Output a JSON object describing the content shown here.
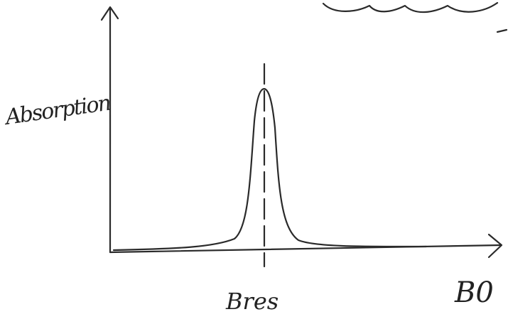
{
  "axes": {
    "y_label": "Absorption",
    "x_label": "B0"
  },
  "peak": {
    "label": "Bres"
  }
}
